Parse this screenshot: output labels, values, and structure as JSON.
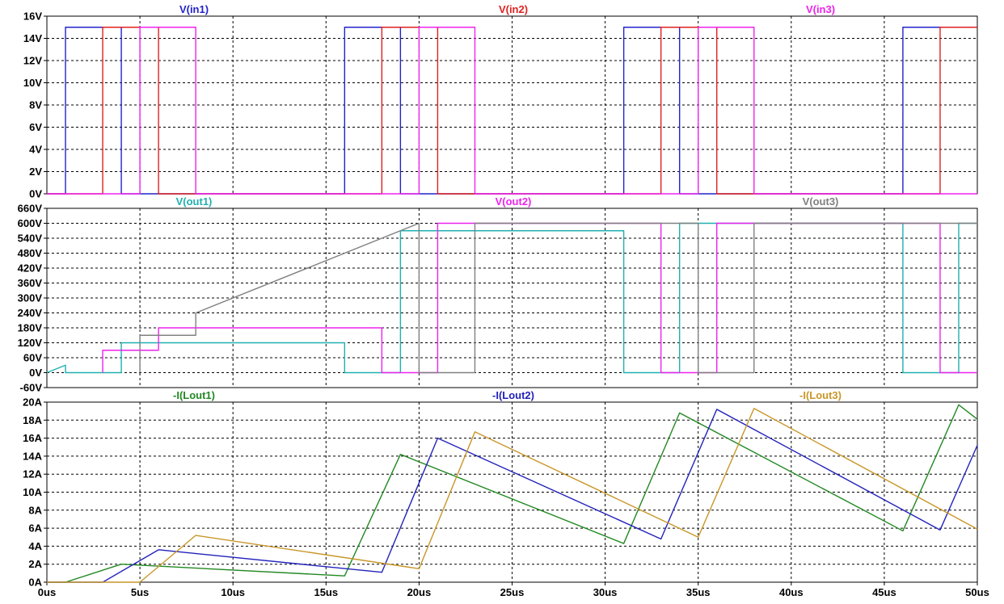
{
  "chart_data": [
    {
      "type": "line",
      "title": "",
      "xlabel": "",
      "ylabel": "",
      "xlim": [
        0,
        50
      ],
      "ylim": [
        0,
        16
      ],
      "grid": true,
      "x_ticks": [
        "0us",
        "5us",
        "10us",
        "15us",
        "20us",
        "25us",
        "30us",
        "35us",
        "40us",
        "45us",
        "50us"
      ],
      "y_ticks": [
        {
          "v": 0,
          "label": "0V"
        },
        {
          "v": 2,
          "label": "2V"
        },
        {
          "v": 4,
          "label": "4V"
        },
        {
          "v": 6,
          "label": "6V"
        },
        {
          "v": 8,
          "label": "8V"
        },
        {
          "v": 10,
          "label": "10V"
        },
        {
          "v": 12,
          "label": "12V"
        },
        {
          "v": 14,
          "label": "14V"
        },
        {
          "v": 16,
          "label": "16V"
        }
      ],
      "series": [
        {
          "name": "V(in1)",
          "color": "#2222cc",
          "x": [
            0,
            1,
            1,
            3,
            3,
            4,
            4,
            16,
            16,
            17,
            17,
            19,
            19,
            20,
            20,
            31,
            31,
            32,
            32,
            34,
            34,
            35,
            35,
            46,
            46,
            48,
            48,
            50
          ],
          "y": [
            0,
            0,
            15,
            15,
            15,
            15,
            0,
            0,
            15,
            15,
            15,
            15,
            0,
            0,
            0,
            0,
            15,
            15,
            15,
            15,
            0,
            0,
            0,
            0,
            15,
            15,
            15,
            15
          ]
        },
        {
          "name": "V(in2)",
          "color": "#e02020",
          "x": [
            0,
            3,
            3,
            6,
            6,
            18,
            18,
            21,
            21,
            33,
            33,
            36,
            36,
            48,
            48,
            50
          ],
          "y": [
            0,
            0,
            15,
            15,
            0,
            0,
            15,
            15,
            0,
            0,
            15,
            15,
            0,
            0,
            15,
            15
          ]
        },
        {
          "name": "V(in3)",
          "color": "#ee22ee",
          "x": [
            0,
            5,
            5,
            8,
            8,
            20,
            20,
            23,
            23,
            35,
            35,
            38,
            38,
            50
          ],
          "y": [
            0,
            0,
            15,
            15,
            0,
            0,
            15,
            15,
            0,
            0,
            15,
            15,
            0,
            0
          ]
        }
      ]
    },
    {
      "type": "line",
      "title": "",
      "xlabel": "",
      "ylabel": "",
      "xlim": [
        0,
        50
      ],
      "ylim": [
        -60,
        660
      ],
      "grid": true,
      "x_ticks": [],
      "y_ticks": [
        {
          "v": -60,
          "label": "-60V"
        },
        {
          "v": 0,
          "label": "0V"
        },
        {
          "v": 60,
          "label": "60V"
        },
        {
          "v": 120,
          "label": "120V"
        },
        {
          "v": 180,
          "label": "180V"
        },
        {
          "v": 240,
          "label": "240V"
        },
        {
          "v": 300,
          "label": "300V"
        },
        {
          "v": 360,
          "label": "360V"
        },
        {
          "v": 420,
          "label": "420V"
        },
        {
          "v": 480,
          "label": "480V"
        },
        {
          "v": 540,
          "label": "540V"
        },
        {
          "v": 600,
          "label": "600V"
        },
        {
          "v": 660,
          "label": "660V"
        }
      ],
      "series": [
        {
          "name": "V(out1)",
          "color": "#20b0b0",
          "x": [
            0,
            1,
            1,
            4,
            4,
            16,
            16,
            19,
            19,
            31,
            31,
            34,
            34,
            46,
            46,
            49,
            49,
            50
          ],
          "y": [
            0,
            30,
            0,
            0,
            120,
            120,
            0,
            0,
            570,
            570,
            0,
            0,
            600,
            600,
            0,
            0,
            600,
            600
          ]
        },
        {
          "name": "V(out2)",
          "color": "#ee22ee",
          "x": [
            3,
            3,
            6,
            6,
            18,
            18,
            21,
            21,
            33,
            33,
            36,
            36,
            48,
            48,
            50
          ],
          "y": [
            0,
            90,
            90,
            180,
            180,
            0,
            0,
            600,
            600,
            0,
            0,
            600,
            600,
            0,
            0
          ]
        },
        {
          "name": "V(out3)",
          "color": "#808080",
          "x": [
            5,
            5,
            8,
            8,
            20,
            20,
            23,
            23,
            35,
            35,
            38,
            38,
            50
          ],
          "y": [
            0,
            150,
            150,
            240,
            600,
            0,
            0,
            600,
            600,
            0,
            0,
            600,
            600
          ]
        }
      ]
    },
    {
      "type": "line",
      "title": "",
      "xlabel": "",
      "ylabel": "",
      "xlim": [
        0,
        50
      ],
      "ylim": [
        0,
        20
      ],
      "grid": true,
      "x_ticks": [
        "0us",
        "5us",
        "10us",
        "15us",
        "20us",
        "25us",
        "30us",
        "35us",
        "40us",
        "45us",
        "50us"
      ],
      "y_ticks": [
        {
          "v": 0,
          "label": "0A"
        },
        {
          "v": 2,
          "label": "2A"
        },
        {
          "v": 4,
          "label": "4A"
        },
        {
          "v": 6,
          "label": "6A"
        },
        {
          "v": 8,
          "label": "8A"
        },
        {
          "v": 10,
          "label": "10A"
        },
        {
          "v": 12,
          "label": "12A"
        },
        {
          "v": 14,
          "label": "14A"
        },
        {
          "v": 16,
          "label": "16A"
        },
        {
          "v": 18,
          "label": "18A"
        },
        {
          "v": 20,
          "label": "20A"
        }
      ],
      "series": [
        {
          "name": "-I(Lout1)",
          "color": "#228822",
          "x": [
            0,
            1,
            4,
            16,
            19,
            31,
            34,
            46,
            49,
            50
          ],
          "y": [
            0,
            0,
            2,
            0.7,
            14.2,
            4.3,
            18.8,
            5.7,
            19.7,
            18.1
          ]
        },
        {
          "name": "-I(Lout2)",
          "color": "#2222bb",
          "x": [
            0,
            3,
            6,
            18,
            21,
            33,
            36,
            48,
            50
          ],
          "y": [
            0,
            0,
            3.6,
            1.1,
            16,
            4.8,
            19.2,
            5.8,
            15.2
          ]
        },
        {
          "name": "-I(Lout3)",
          "color": "#c89628",
          "x": [
            0,
            5,
            8,
            20,
            23,
            35,
            38,
            50
          ],
          "y": [
            0,
            0,
            5.2,
            1.5,
            16.7,
            5,
            19.3,
            5.9
          ]
        }
      ]
    }
  ]
}
